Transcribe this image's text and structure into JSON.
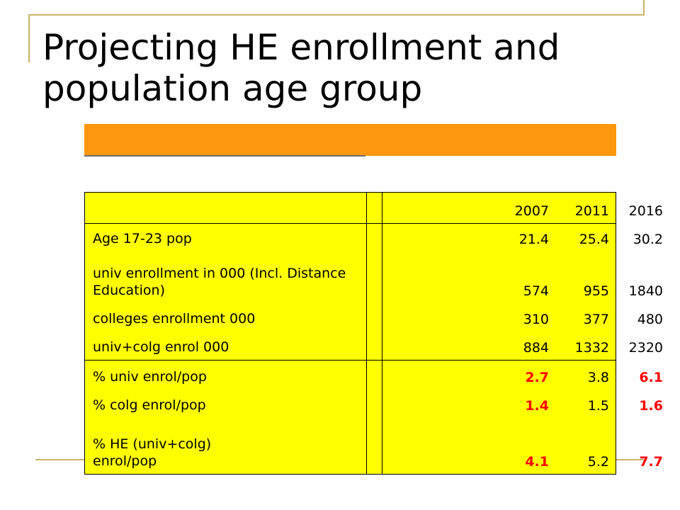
{
  "slide": {
    "title": "Projecting HE enrollment and population age group"
  },
  "table": {
    "headers": [
      "",
      "2007",
      "2011",
      "2016"
    ],
    "rows": [
      {
        "label": "Age 17-23 pop",
        "values": [
          "21.4",
          "25.4",
          "30.2"
        ],
        "red": [
          false,
          false,
          false
        ]
      },
      {
        "label": "univ enrollment in 000 (Incl. Distance Education)",
        "values": [
          "574",
          "955",
          "1840"
        ],
        "red": [
          false,
          false,
          false
        ]
      },
      {
        "label": "colleges enrollment 000",
        "values": [
          "310",
          "377",
          "480"
        ],
        "red": [
          false,
          false,
          false
        ]
      },
      {
        "label": "univ+colg enrol 000",
        "values": [
          "884",
          "1332",
          "2320"
        ],
        "red": [
          false,
          false,
          false
        ]
      },
      {
        "label": "% univ enrol/pop",
        "values": [
          "2.7",
          "3.8",
          "6.1"
        ],
        "red": [
          true,
          false,
          true
        ]
      },
      {
        "label": "% colg enrol/pop",
        "values": [
          "1.4",
          "1.5",
          "1.6"
        ],
        "red": [
          true,
          false,
          true
        ]
      },
      {
        "label": "% HE (univ+colg) enrol/pop",
        "values": [
          "4.1",
          "5.2",
          "7.7"
        ],
        "red": [
          true,
          false,
          true
        ]
      }
    ]
  },
  "colors": {
    "accent_orange": "#fd970d",
    "table_bg": "#ffff00",
    "highlight_red": "#ff0000",
    "decor_gold": "#c9b36a"
  }
}
